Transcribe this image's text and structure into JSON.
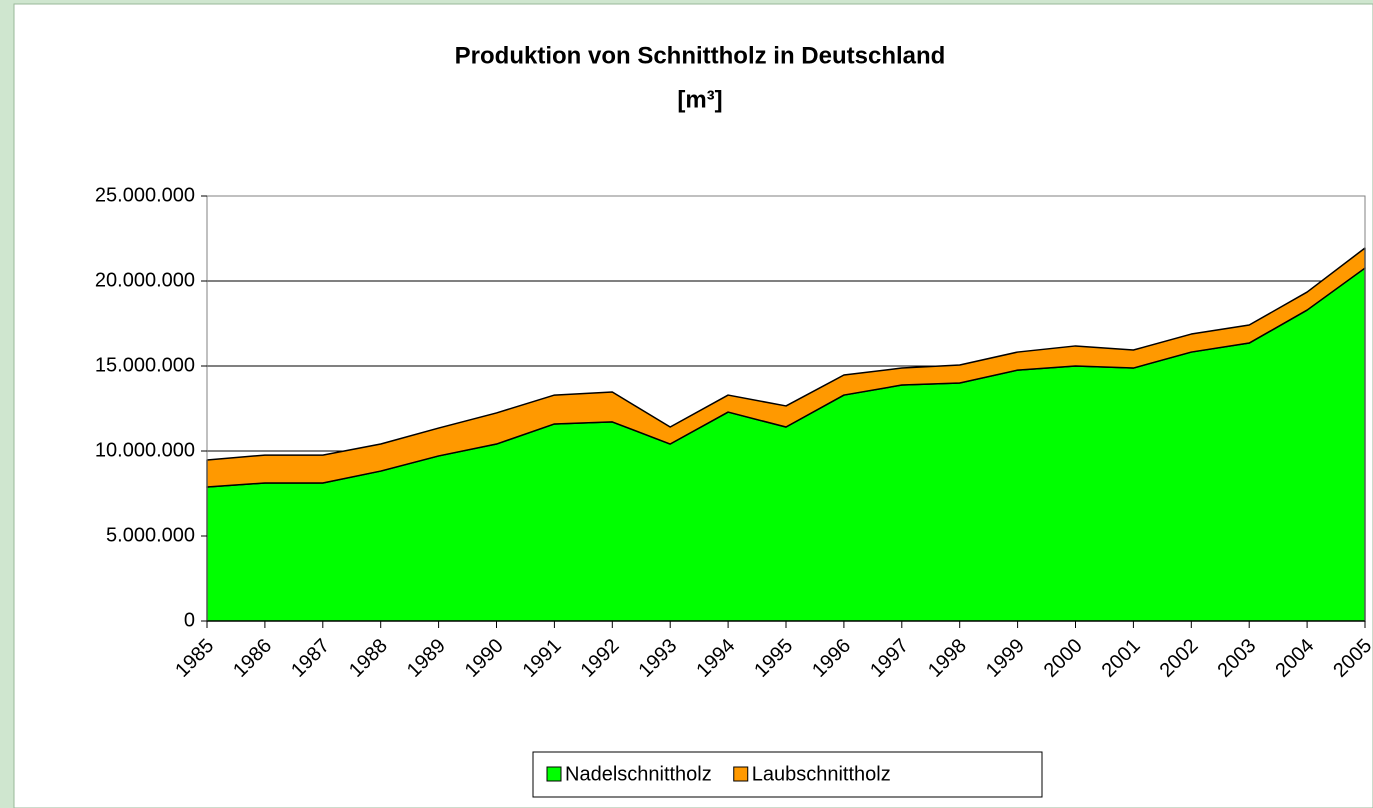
{
  "chart_data": {
    "type": "stacked-area",
    "title": "Produktion von Schnittholz in Deutschland",
    "subtitle": "[m³]",
    "categories": [
      "1985",
      "1986",
      "1987",
      "1988",
      "1989",
      "1990",
      "1991",
      "1992",
      "1993",
      "1994",
      "1995",
      "1996",
      "1997",
      "1998",
      "1999",
      "2000",
      "2001",
      "2002",
      "2003",
      "2004",
      "2005"
    ],
    "series": [
      {
        "name": "Nadelschnittholz",
        "color": "#00ff00",
        "values": [
          7880000,
          8120000,
          8120000,
          8820000,
          9710000,
          10410000,
          11590000,
          11710000,
          10410000,
          12290000,
          11410000,
          13290000,
          13880000,
          14000000,
          14760000,
          15000000,
          14880000,
          15820000,
          16350000,
          18290000,
          20760000
        ]
      },
      {
        "name": "Laubschnittholz",
        "color": "#ff9900",
        "values": [
          1590000,
          1640000,
          1640000,
          1590000,
          1640000,
          1830000,
          1700000,
          1760000,
          1000000,
          1000000,
          1240000,
          1180000,
          1000000,
          1060000,
          1060000,
          1180000,
          1060000,
          1060000,
          1060000,
          1060000,
          1180000
        ]
      }
    ],
    "ylim": [
      0,
      25000000
    ],
    "yticks": [
      0,
      {
        "value": 5000000,
        "label": "5.000.000"
      },
      {
        "value": 10000000,
        "label": "10.000.000"
      },
      {
        "value": 15000000,
        "label": "15.000.000"
      },
      {
        "value": 20000000,
        "label": "20.000.000"
      },
      {
        "value": 25000000,
        "label": "25.000.000"
      }
    ],
    "grid": true,
    "legend": "bottom"
  }
}
